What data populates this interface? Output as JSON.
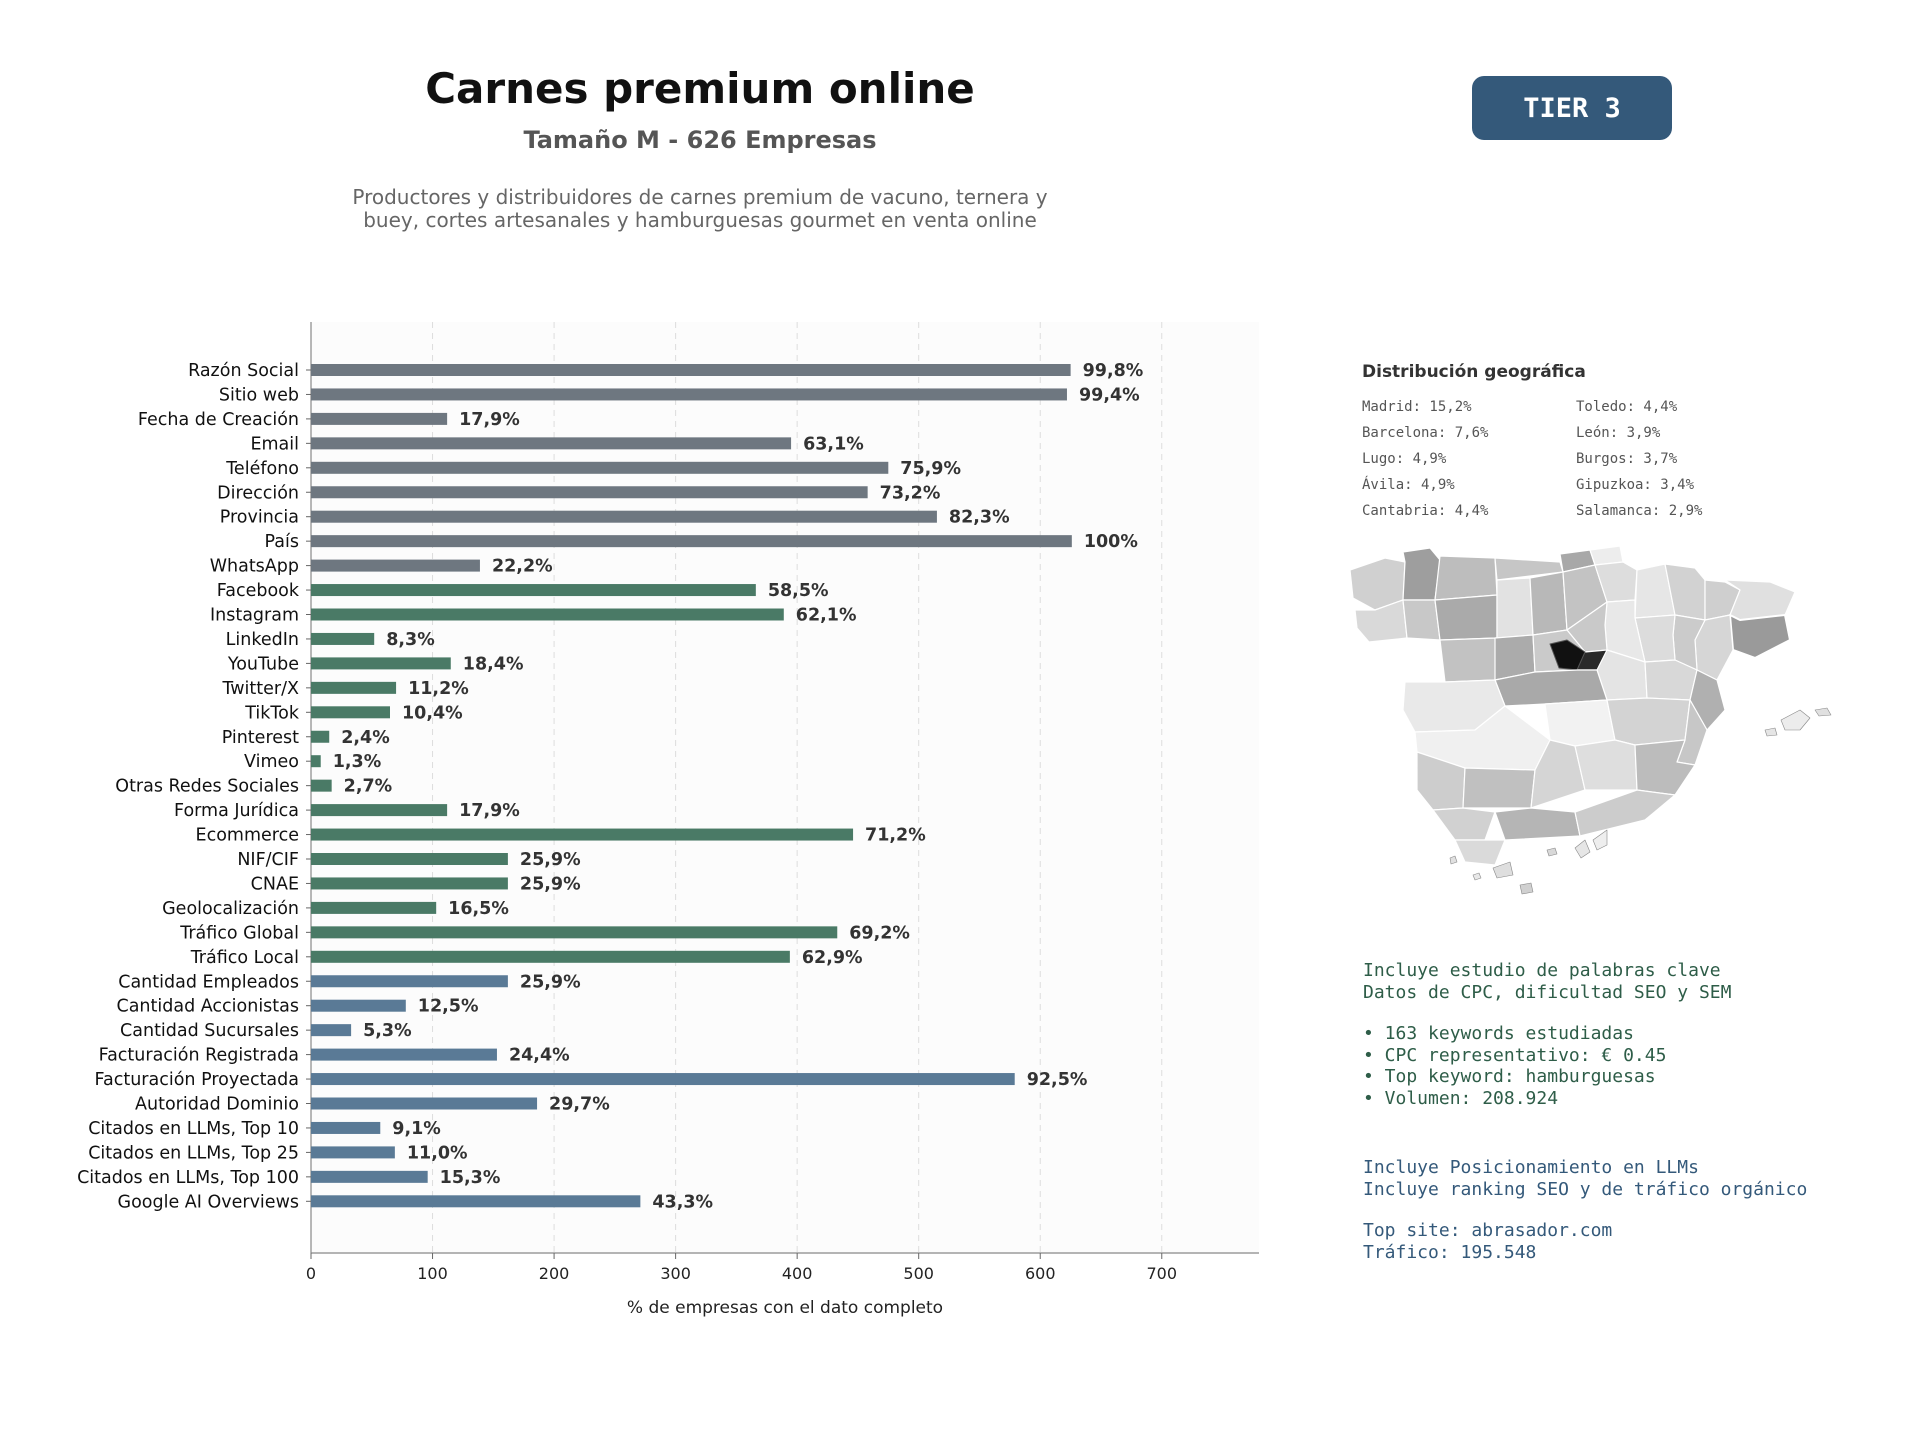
{
  "header": {
    "title": "Carnes premium online",
    "subtitle": "Tamaño M - 626 Empresas",
    "description_line1": "Productores y distribuidores de carnes premium de vacuno, ternera y",
    "description_line2": "buey, cortes artesanales y hamburguesas gourmet en venta online",
    "tier": "TIER 3"
  },
  "colors": {
    "gray": "#6e7780",
    "green": "#4a7a66",
    "blue": "#5a7a96",
    "tier": "#34597a"
  },
  "chart_data": {
    "type": "bar",
    "orientation": "horizontal",
    "xlabel": "% de empresas con el dato completo",
    "xlim": [
      0,
      780
    ],
    "xticks": [
      0,
      100,
      200,
      300,
      400,
      500,
      600,
      700
    ],
    "grid": "vertical dashed",
    "categories": [
      "Razón Social",
      "Sitio web",
      "Fecha de Creación",
      "Email",
      "Teléfono",
      "Dirección",
      "Provincia",
      "País",
      "WhatsApp",
      "Facebook",
      "Instagram",
      "LinkedIn",
      "YouTube",
      "Twitter/X",
      "TikTok",
      "Pinterest",
      "Vimeo",
      "Otras Redes Sociales",
      "Forma Jurídica",
      "Ecommerce",
      "NIF/CIF",
      "CNAE",
      "Geolocalización",
      "Tráfico Global",
      "Tráfico Local",
      "Cantidad Empleados",
      "Cantidad Accionistas",
      "Cantidad Sucursales",
      "Facturación Registrada",
      "Facturación Proyectada",
      "Autoridad Dominio",
      "Citados en LLMs, Top 10",
      "Citados en LLMs, Top 25",
      "Citados en LLMs, Top 100",
      "Google AI Overviews"
    ],
    "values": [
      625,
      622,
      112,
      395,
      475,
      458,
      515,
      626,
      139,
      366,
      389,
      52,
      115,
      70,
      65,
      15,
      8,
      17,
      112,
      446,
      162,
      162,
      103,
      433,
      394,
      162,
      78,
      33,
      153,
      579,
      186,
      57,
      69,
      96,
      271
    ],
    "labels": [
      "99,8%",
      "99,4%",
      "17,9%",
      "63,1%",
      "75,9%",
      "73,2%",
      "82,3%",
      "100%",
      "22,2%",
      "58,5%",
      "62,1%",
      "8,3%",
      "18,4%",
      "11,2%",
      "10,4%",
      "2,4%",
      "1,3%",
      "2,7%",
      "17,9%",
      "71,2%",
      "25,9%",
      "25,9%",
      "16,5%",
      "69,2%",
      "62,9%",
      "25,9%",
      "12,5%",
      "5,3%",
      "24,4%",
      "92,5%",
      "29,7%",
      "9,1%",
      "11,0%",
      "15,3%",
      "43,3%"
    ],
    "groups": [
      "gray",
      "gray",
      "gray",
      "gray",
      "gray",
      "gray",
      "gray",
      "gray",
      "gray",
      "green",
      "green",
      "green",
      "green",
      "green",
      "green",
      "green",
      "green",
      "green",
      "green",
      "green",
      "green",
      "green",
      "green",
      "green",
      "green",
      "blue",
      "blue",
      "blue",
      "blue",
      "blue",
      "blue",
      "blue",
      "blue",
      "blue",
      "blue"
    ]
  },
  "geo": {
    "title": "Distribución geográfica",
    "items": [
      "Madrid: 15,2%",
      "Toledo: 4,4%",
      "Barcelona: 7,6%",
      "León: 3,9%",
      "Lugo: 4,9%",
      "Burgos: 3,7%",
      "Ávila: 4,9%",
      "Gipuzkoa: 3,4%",
      "Cantabria: 4,4%",
      "Salamanca: 2,9%"
    ]
  },
  "keywords": {
    "line1": "Incluye estudio de palabras clave",
    "line2": "Datos de CPC, dificultad SEO y SEM",
    "bullet1": "• 163 keywords estudiadas",
    "bullet2": "• CPC representativo: € 0.45",
    "bullet3": "• Top keyword: hamburguesas",
    "bullet4": "• Volumen: 208.924"
  },
  "llm": {
    "line1": "Incluye Posicionamiento en LLMs",
    "line2": "Incluye ranking SEO y de tráfico orgánico",
    "top_site": "Top site: abrasador.com",
    "traffic": "Tráfico: 195.548"
  }
}
